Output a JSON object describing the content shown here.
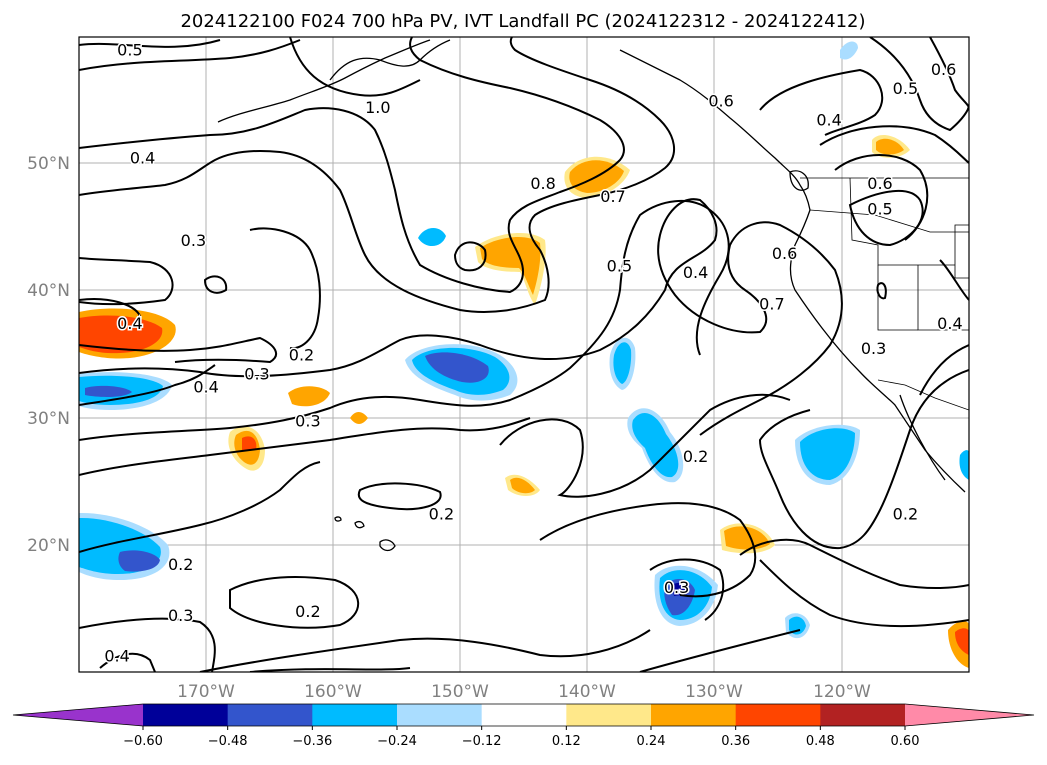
{
  "title": "2024122100 F024 700 hPa PV, IVT Landfall PC (2024122312 - 2024122412)",
  "map": {
    "lat_ticks": [
      "50°N",
      "40°N",
      "30°N",
      "20°N"
    ],
    "lon_ticks": [
      "170°W",
      "160°W",
      "150°W",
      "140°W",
      "130°W",
      "120°W"
    ]
  },
  "chart_data": {
    "type": "contour-map",
    "extent": {
      "lon_min": -180,
      "lon_max": -110,
      "lat_min": 10,
      "lat_max": 60
    },
    "gridlines": true,
    "contour_field": "700 hPa PV",
    "contour_labels": [
      {
        "text": "0.5",
        "lon": -176,
        "lat": 59
      },
      {
        "text": "1.0",
        "lon": -156.5,
        "lat": 54.5
      },
      {
        "text": "0.4",
        "lon": -175,
        "lat": 50.5
      },
      {
        "text": "0.3",
        "lon": -171,
        "lat": 44
      },
      {
        "text": "0.4",
        "lon": -176,
        "lat": 37.5
      },
      {
        "text": "0.2",
        "lon": -162.5,
        "lat": 35
      },
      {
        "text": "0.3",
        "lon": -166,
        "lat": 33.5
      },
      {
        "text": "0.4",
        "lon": -170,
        "lat": 32.5
      },
      {
        "text": "0.3",
        "lon": -162,
        "lat": 29.8
      },
      {
        "text": "0.8",
        "lon": -143.5,
        "lat": 48.5
      },
      {
        "text": "0.7",
        "lon": -138,
        "lat": 47.5
      },
      {
        "text": "0.5",
        "lon": -137.5,
        "lat": 42
      },
      {
        "text": "0.4",
        "lon": -131.5,
        "lat": 41.5
      },
      {
        "text": "0.6",
        "lon": -129.5,
        "lat": 55
      },
      {
        "text": "0.4",
        "lon": -121,
        "lat": 53.5
      },
      {
        "text": "0.5",
        "lon": -115,
        "lat": 56
      },
      {
        "text": "0.6",
        "lon": -112,
        "lat": 57.5
      },
      {
        "text": "0.6",
        "lon": -117,
        "lat": 48.5
      },
      {
        "text": "0.5",
        "lon": -117,
        "lat": 46.5
      },
      {
        "text": "0.6",
        "lon": -124.5,
        "lat": 43
      },
      {
        "text": "0.7",
        "lon": -125.5,
        "lat": 39
      },
      {
        "text": "0.3",
        "lon": -117.5,
        "lat": 35.5
      },
      {
        "text": "0.4",
        "lon": -111.5,
        "lat": 37.5
      },
      {
        "text": "0.2",
        "lon": -131.5,
        "lat": 27
      },
      {
        "text": "0.2",
        "lon": -115,
        "lat": 22.5
      },
      {
        "text": "0.2",
        "lon": -151.5,
        "lat": 22.5
      },
      {
        "text": "0.2",
        "lon": -172,
        "lat": 18.5
      },
      {
        "text": "0.3",
        "lon": -172,
        "lat": 14.5
      },
      {
        "text": "0.2",
        "lon": -162,
        "lat": 14.8
      },
      {
        "text": "0.3",
        "lon": -133,
        "lat": 16.7
      },
      {
        "text": "0.4",
        "lon": -177,
        "lat": 11.3
      }
    ],
    "filled_field": "IVT Landfall PC",
    "colorbar": {
      "extend": "both",
      "boundaries": [
        -0.6,
        -0.48,
        -0.36,
        -0.24,
        -0.12,
        0.12,
        0.24,
        0.36,
        0.48,
        0.6
      ],
      "tick_labels": [
        "−0.60",
        "−0.48",
        "−0.36",
        "−0.24",
        "−0.12",
        "0.12",
        "0.24",
        "0.36",
        "0.48",
        "0.60"
      ],
      "colors": [
        "#9933cc",
        "#000099",
        "#3355cc",
        "#00bbff",
        "#aaddff",
        "#ffffff",
        "#ffe88a",
        "#ffa500",
        "#ff4500",
        "#b22222",
        "#ff8aa8"
      ]
    }
  }
}
